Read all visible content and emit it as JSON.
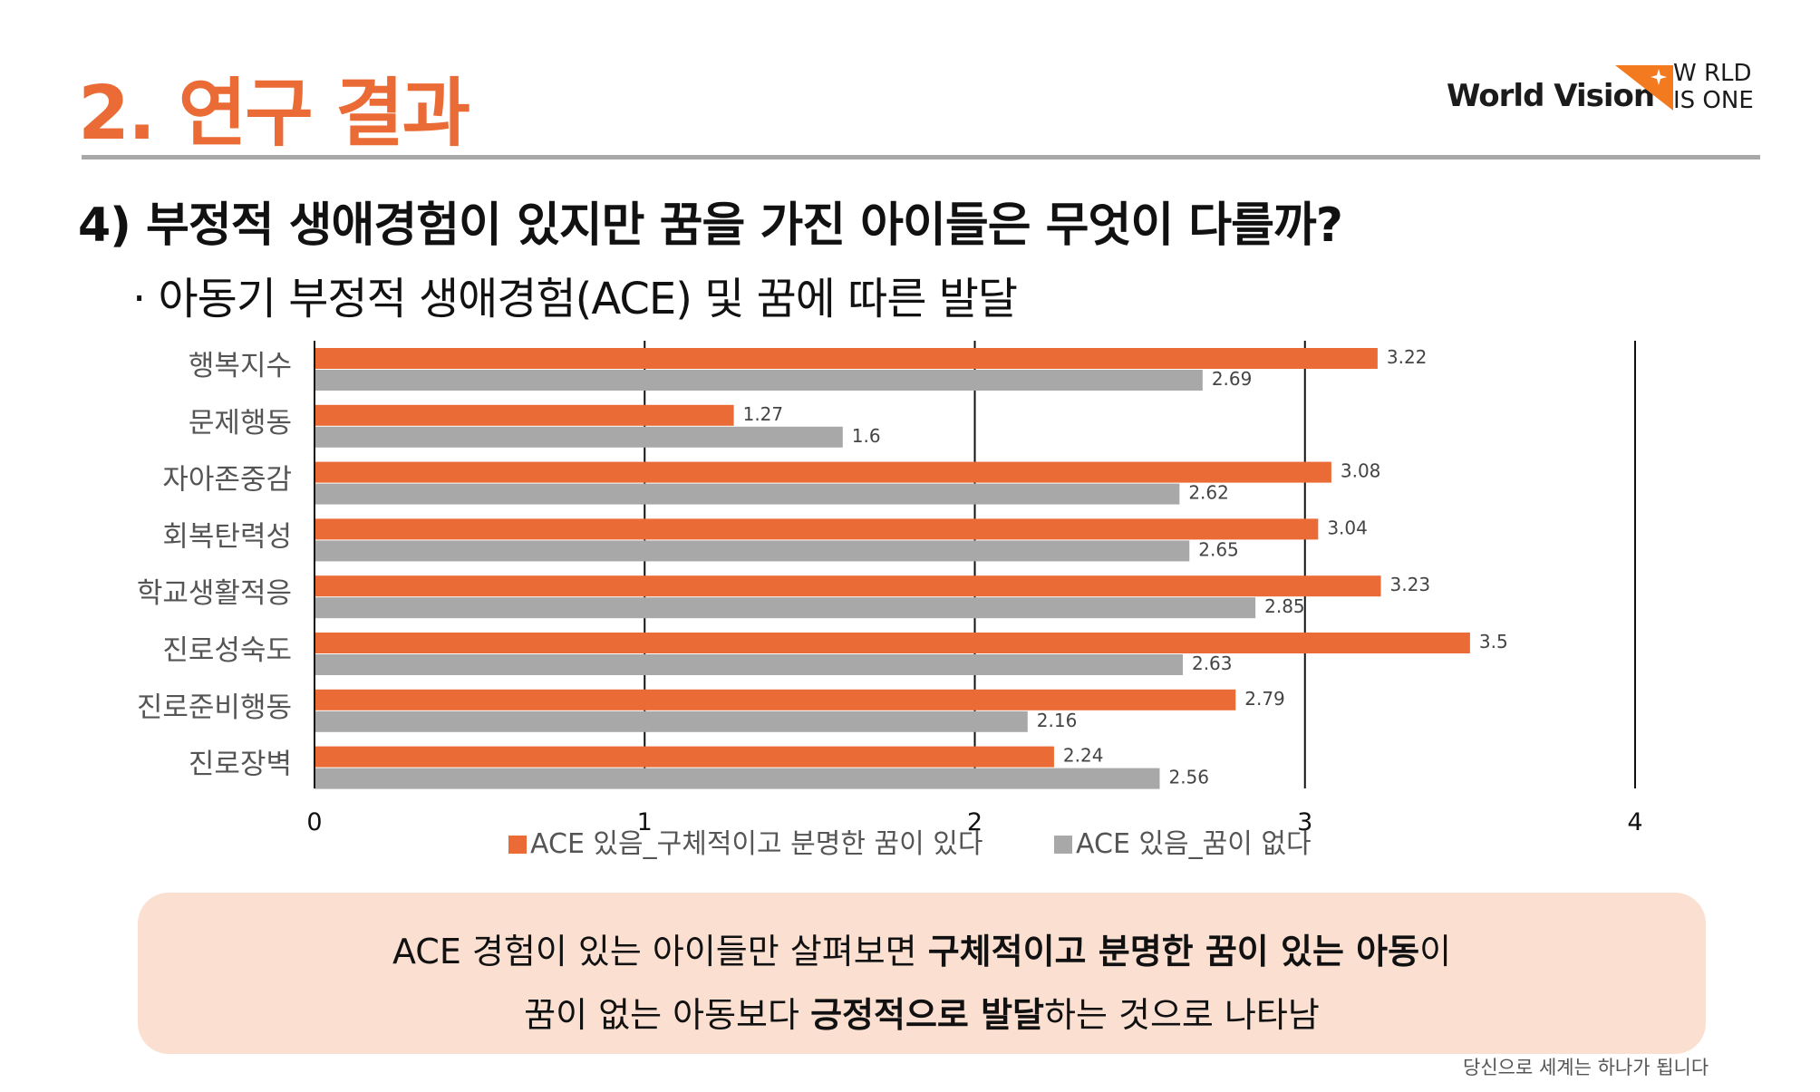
{
  "header": {
    "section_title": "2. 연구 결과",
    "question": "4) 부정적 생애경험이 있지만 꿈을 가진 아이들은 무엇이 다를까?",
    "subtitle": "· 아동기 부정적 생애경험(ACE) 및 꿈에 따른 발달"
  },
  "logo": {
    "name": "World Vision",
    "tagline_line1": "W RLD",
    "tagline_line2": "IS ONE",
    "brand_color": "#f47a20"
  },
  "chart_data": {
    "type": "bar",
    "orientation": "horizontal",
    "categories": [
      "행복지수",
      "문제행동",
      "자아존중감",
      "회복탄력성",
      "학교생활적응",
      "진로성숙도",
      "진로준비행동",
      "진로장벽"
    ],
    "series": [
      {
        "name": "ACE 있음_구체적이고 분명한 꿈이 있다",
        "color": "#ea6b35",
        "values": [
          3.22,
          1.27,
          3.08,
          3.04,
          3.23,
          3.5,
          2.79,
          2.24
        ],
        "labels": [
          "3.22",
          "1.27",
          "3.08",
          "3.04",
          "3.23",
          "3.5",
          "2.79",
          "2.24"
        ]
      },
      {
        "name": "ACE 있음_꿈이 없다",
        "color": "#a8a8a8",
        "values": [
          2.69,
          1.6,
          2.62,
          2.65,
          2.85,
          2.63,
          2.16,
          2.56
        ],
        "labels": [
          "2.69",
          "1.6",
          "2.62",
          "2.65",
          "2.85",
          "2.63",
          "2.16",
          "2.56"
        ]
      }
    ],
    "xlim": [
      0,
      4
    ],
    "xticks": [
      "0",
      "1",
      "2",
      "3",
      "4"
    ],
    "grid": "vertical",
    "legend_position": "bottom"
  },
  "summary": {
    "line1_pre": "ACE 경험이 있는 아이들만 살펴보면 ",
    "line1_bold": "구체적이고 분명한 꿈이 있는 아동",
    "line1_post": "이",
    "line2_pre": "꿈이 없는 아동보다 ",
    "line2_bold": "긍정적으로 발달",
    "line2_post": "하는 것으로 나타남"
  },
  "footer": {
    "slogan": "당신으로 세계는 하나가 됩니다"
  }
}
